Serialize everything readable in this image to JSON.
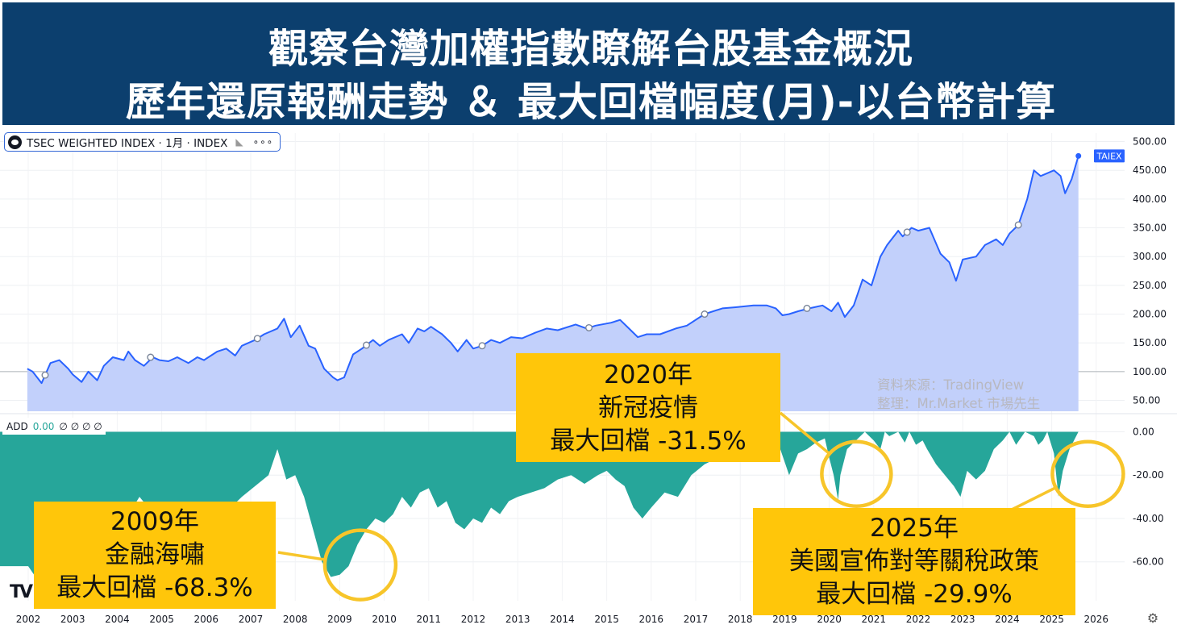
{
  "title": {
    "line1": "觀察台灣加權指數瞭解台股基金概況",
    "line2": "歷年還原報酬走勢 ＆ 最大回檔幅度(月)-以台幣計算"
  },
  "legend": {
    "label": "TSEC WEIGHTED INDEX · 1月 · INDEX",
    "icon": "eye-icon",
    "flag_icon": "flag-icon",
    "more": "∘∘∘"
  },
  "price_tag": "TAIEX",
  "add_legend": {
    "name": "ADD",
    "value": "0.00",
    "extras": "∅ ∅ ∅ ∅"
  },
  "watermark": {
    "line1": "資料來源：TradingView",
    "line2": "整理：Mr.Market 市場先生"
  },
  "callouts": {
    "c2020": {
      "year": "2020年",
      "event": "新冠疫情",
      "dd": "最大回檔 -31.5%"
    },
    "c2009": {
      "year": "2009年",
      "event": "金融海嘯",
      "dd": "最大回檔 -68.3%"
    },
    "c2025": {
      "year": "2025年",
      "event": "美國宣佈對等關稅政策",
      "dd": "最大回檔 -29.9%"
    }
  },
  "logo": "TV",
  "colors": {
    "banner": "#0c3f6e",
    "line": "#2962ff",
    "area": "#c2d0fb",
    "drawdown": "#26a69a",
    "callout": "#ffc60a",
    "ring": "#f7c52a"
  },
  "chart_data": [
    {
      "type": "area",
      "series": [
        {
          "name": "TAIEX",
          "x": [
            2001.98,
            2002.1,
            2002.3,
            2002.5,
            2002.7,
            2002.9,
            2003.0,
            2003.2,
            2003.35,
            2003.55,
            2003.7,
            2003.9,
            2004.15,
            2004.25,
            2004.4,
            2004.6,
            2004.8,
            2004.95,
            2005.15,
            2005.35,
            2005.6,
            2005.8,
            2005.95,
            2006.25,
            2006.45,
            2006.65,
            2006.8,
            2007.1,
            2007.3,
            2007.6,
            2007.75,
            2007.9,
            2008.1,
            2008.3,
            2008.45,
            2008.65,
            2008.85,
            2008.95,
            2009.1,
            2009.3,
            2009.5,
            2009.75,
            2009.9,
            2010.1,
            2010.4,
            2010.55,
            2010.75,
            2010.9,
            2011.05,
            2011.3,
            2011.5,
            2011.65,
            2011.85,
            2012.0,
            2012.2,
            2012.4,
            2012.6,
            2012.85,
            2013.1,
            2013.4,
            2013.65,
            2013.9,
            2014.3,
            2014.55,
            2014.75,
            2015.1,
            2015.3,
            2015.5,
            2015.7,
            2015.9,
            2016.2,
            2016.55,
            2016.8,
            2017.2,
            2017.6,
            2017.9,
            2018.3,
            2018.6,
            2018.8,
            2018.95,
            2019.1,
            2019.3,
            2019.55,
            2019.85,
            2020.05,
            2020.2,
            2020.35,
            2020.55,
            2020.75,
            2020.95,
            2021.15,
            2021.3,
            2021.55,
            2021.65,
            2021.85,
            2022.0,
            2022.25,
            2022.5,
            2022.7,
            2022.85,
            2023.0,
            2023.3,
            2023.5,
            2023.75,
            2023.9,
            2024.05,
            2024.25,
            2024.45,
            2024.6,
            2024.75,
            2024.9,
            2025.05,
            2025.2,
            2025.3,
            2025.45,
            2025.6
          ],
          "values": [
            105,
            100,
            80,
            115,
            120,
            105,
            95,
            82,
            100,
            85,
            110,
            125,
            120,
            135,
            120,
            110,
            125,
            120,
            118,
            125,
            115,
            125,
            120,
            135,
            140,
            128,
            145,
            155,
            165,
            175,
            192,
            160,
            180,
            145,
            140,
            105,
            90,
            85,
            90,
            130,
            140,
            155,
            145,
            155,
            165,
            150,
            175,
            170,
            178,
            165,
            150,
            135,
            155,
            140,
            145,
            155,
            150,
            160,
            158,
            168,
            175,
            172,
            182,
            175,
            180,
            185,
            190,
            175,
            160,
            165,
            165,
            175,
            180,
            200,
            210,
            212,
            215,
            215,
            210,
            198,
            200,
            205,
            210,
            215,
            205,
            220,
            195,
            215,
            260,
            250,
            300,
            320,
            345,
            335,
            350,
            345,
            350,
            305,
            290,
            258,
            295,
            300,
            320,
            330,
            320,
            340,
            355,
            400,
            450,
            440,
            445,
            450,
            440,
            410,
            435,
            475
          ],
          "ylim": [
            0,
            510
          ]
        }
      ],
      "y_ticks": [
        "500.00",
        "450.00",
        "400.00",
        "350.00",
        "300.00",
        "250.00",
        "200.00",
        "150.00",
        "100.00",
        "50.00"
      ],
      "markers_x": [
        2002.38,
        2004.75,
        2007.15,
        2009.6,
        2012.2,
        2014.6,
        2017.2,
        2019.5,
        2021.75,
        2024.25
      ],
      "last_value": 475
    },
    {
      "type": "area",
      "series": [
        {
          "name": "ADD",
          "x": [
            2002.0,
            2002.2,
            2002.4,
            2002.6,
            2002.8,
            2003.0,
            2003.3,
            2003.6,
            2003.8,
            2004.0,
            2004.2,
            2004.5,
            2004.7,
            2005.0,
            2005.3,
            2005.6,
            2005.9,
            2006.2,
            2006.5,
            2006.8,
            2007.1,
            2007.4,
            2007.6,
            2007.8,
            2008.0,
            2008.2,
            2008.4,
            2008.6,
            2008.8,
            2009.0,
            2009.2,
            2009.4,
            2009.6,
            2009.8,
            2010.0,
            2010.2,
            2010.4,
            2010.6,
            2010.8,
            2011.0,
            2011.2,
            2011.4,
            2011.6,
            2011.8,
            2012.0,
            2012.2,
            2012.4,
            2012.6,
            2012.8,
            2013.0,
            2013.3,
            2013.6,
            2013.9,
            2014.2,
            2014.5,
            2014.8,
            2015.0,
            2015.2,
            2015.4,
            2015.6,
            2015.8,
            2016.0,
            2016.3,
            2016.6,
            2016.9,
            2017.2,
            2017.5,
            2017.8,
            2018.1,
            2018.4,
            2018.7,
            2018.9,
            2019.1,
            2019.3,
            2019.5,
            2019.7,
            2019.9,
            2020.0,
            2020.1,
            2020.2,
            2020.25,
            2020.4,
            2020.6,
            2020.8,
            2021.0,
            2021.15,
            2021.25,
            2021.35,
            2021.55,
            2021.7,
            2021.8,
            2021.95,
            2022.1,
            2022.2,
            2022.4,
            2022.6,
            2022.8,
            2022.95,
            2023.1,
            2023.3,
            2023.5,
            2023.7,
            2023.9,
            2024.05,
            2024.2,
            2024.4,
            2024.6,
            2024.7,
            2024.8,
            2024.9,
            2025.05,
            2025.15,
            2025.25,
            2025.4,
            2025.6
          ],
          "values": [
            -62,
            -68,
            -63,
            -58,
            -49,
            -44,
            -55,
            -60,
            -50,
            -46,
            -40,
            -30,
            -35,
            -42,
            -40,
            -38,
            -40,
            -34,
            -36,
            -30,
            -25,
            -20,
            -8,
            -22,
            -20,
            -30,
            -45,
            -60,
            -67,
            -66,
            -62,
            -52,
            -45,
            -40,
            -42,
            -38,
            -30,
            -35,
            -28,
            -26,
            -35,
            -32,
            -42,
            -45,
            -40,
            -42,
            -35,
            -38,
            -32,
            -30,
            -28,
            -26,
            -22,
            -20,
            -24,
            -20,
            -18,
            -22,
            -25,
            -35,
            -40,
            -35,
            -28,
            -30,
            -20,
            -15,
            -12,
            -8,
            -5,
            -8,
            -4,
            -8,
            -20,
            -10,
            -8,
            -5,
            -3,
            -12,
            -20,
            -31.5,
            -20,
            -8,
            -4,
            0,
            -4,
            -8,
            0,
            -2,
            0,
            -5,
            0,
            -6,
            -4,
            -8,
            -15,
            -20,
            -25,
            -30,
            -18,
            -22,
            -18,
            -8,
            -4,
            0,
            -6,
            0,
            -2,
            -6,
            -4,
            0,
            -10,
            -29.9,
            -18,
            -8,
            0
          ],
          "ylim": [
            -75,
            0
          ]
        }
      ],
      "y_ticks": [
        "0.00",
        "-20.00",
        "-40.00",
        "-60.00"
      ]
    }
  ],
  "x_axis_labels": [
    "2002",
    "2003",
    "2004",
    "2005",
    "2006",
    "2007",
    "2008",
    "2009",
    "2010",
    "2011",
    "2012",
    "2013",
    "2014",
    "2015",
    "2016",
    "2017",
    "2018",
    "2019",
    "2020",
    "2021",
    "2022",
    "2023",
    "2024",
    "2025",
    "2026"
  ],
  "rings": [
    {
      "name": "ring-2009",
      "x": 2009.1,
      "y": -54
    },
    {
      "name": "ring-2020",
      "x": 2020.25,
      "y": -12
    },
    {
      "name": "ring-2025",
      "x": 2025.45,
      "y": -12
    }
  ]
}
